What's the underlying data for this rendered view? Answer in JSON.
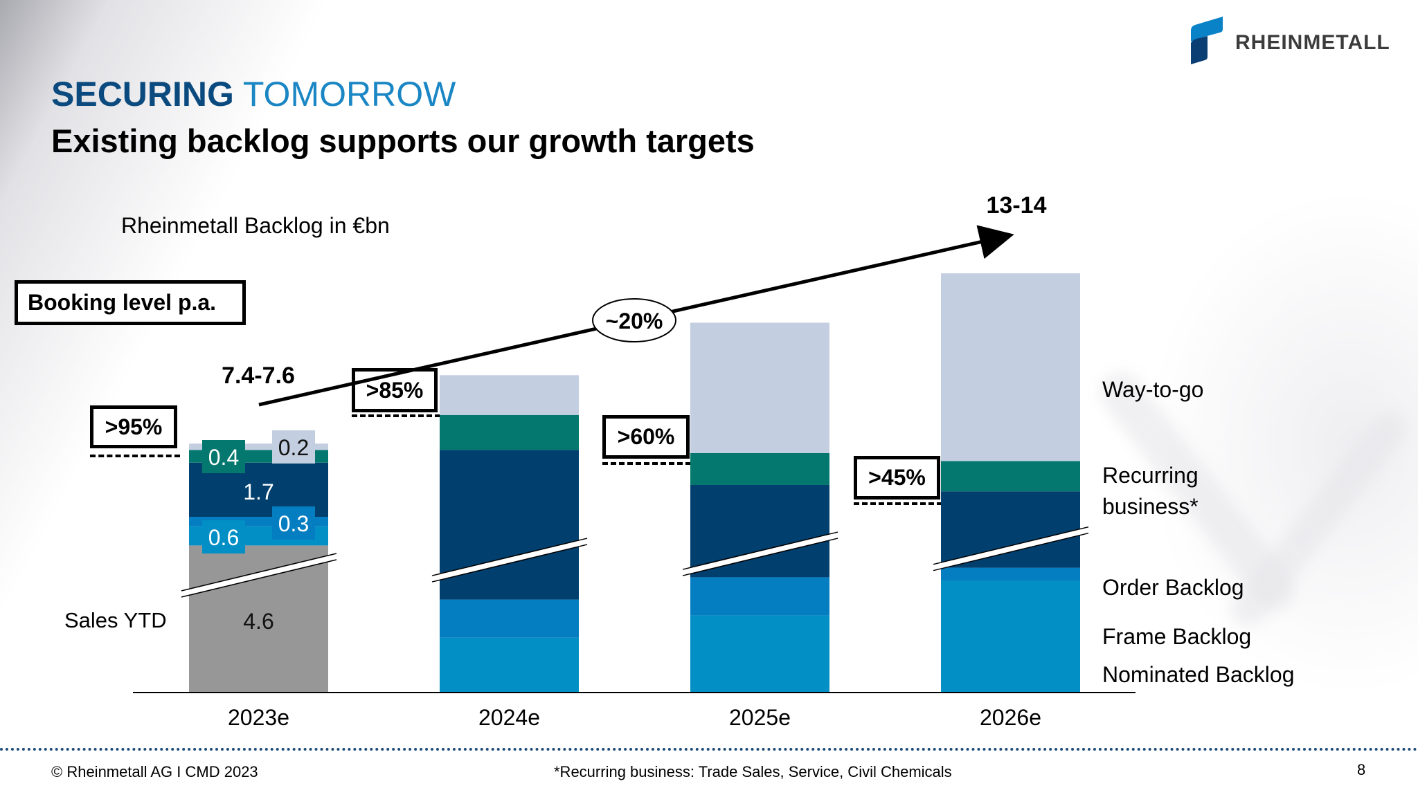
{
  "header": {
    "title_bold": "SECURING",
    "title_light": "TOMORROW",
    "subtitle": "Existing backlog supports our growth targets",
    "logo_text": "RHEINMETALL"
  },
  "chart_data": {
    "type": "bar",
    "stacked": true,
    "title": "Rheinmetall Backlog in €bn",
    "xlabel": "",
    "ylabel": "",
    "y_axis_break": true,
    "grid": false,
    "categories": [
      "2023e",
      "2024e",
      "2025e",
      "2026e"
    ],
    "series": [
      {
        "name": "Sales YTD",
        "color": "#979797",
        "values": [
          4.6,
          0,
          0,
          0
        ]
      },
      {
        "name": "Nominated Backlog",
        "color": "#028fc5",
        "values": [
          0.6,
          1.7,
          2.4,
          3.5
        ]
      },
      {
        "name": "Frame Backlog",
        "color": "#047ec1",
        "values": [
          0.3,
          1.2,
          1.2,
          0.4
        ]
      },
      {
        "name": "Order Backlog",
        "color": "#003f6e",
        "values": [
          1.7,
          4.7,
          2.9,
          2.4
        ]
      },
      {
        "name": "Recurring business*",
        "color": "#04786e",
        "values": [
          0.4,
          1.1,
          1.0,
          0.95
        ]
      },
      {
        "name": "Way-to-go",
        "color": "#c3cee0",
        "values": [
          0.2,
          1.25,
          4.1,
          5.9
        ]
      }
    ],
    "values_note": "2023e values printed on chart; 2024e-2026e segment values estimated from bar proportions",
    "data_labels": [
      {
        "category": "2023e",
        "series": "Way-to-go",
        "text": "0.2"
      },
      {
        "category": "2023e",
        "series": "Recurring business*",
        "text": "0.4"
      },
      {
        "category": "2023e",
        "series": "Order Backlog",
        "text": "1.7"
      },
      {
        "category": "2023e",
        "series": "Frame Backlog",
        "text": "0.3"
      },
      {
        "category": "2023e",
        "series": "Nominated Backlog",
        "text": "0.6"
      },
      {
        "category": "2023e",
        "series": "Sales YTD",
        "text": "4.6"
      }
    ],
    "coverage_labels": [
      {
        "category": "2023e",
        "text": ">95%"
      },
      {
        "category": "2024e",
        "text": ">85%"
      },
      {
        "category": "2025e",
        "text": ">60%"
      },
      {
        "category": "2026e",
        "text": ">45%"
      }
    ],
    "annotations": {
      "booking_level_label": "Booking level p.a.",
      "booking_start": "7.4-7.6",
      "booking_end": "13-14",
      "growth_rate": "~20%"
    },
    "legend_placement": "right",
    "legend": [
      "Way-to-go",
      "Recurring business*",
      "Order Backlog",
      "Frame Backlog",
      "Nominated Backlog"
    ],
    "side_label_left": "Sales YTD"
  },
  "footer": {
    "copyright": "© Rheinmetall AG I   CMD 2023",
    "footnote": "*Recurring business: Trade Sales, Service, Civil Chemicals",
    "page_number": "8"
  }
}
